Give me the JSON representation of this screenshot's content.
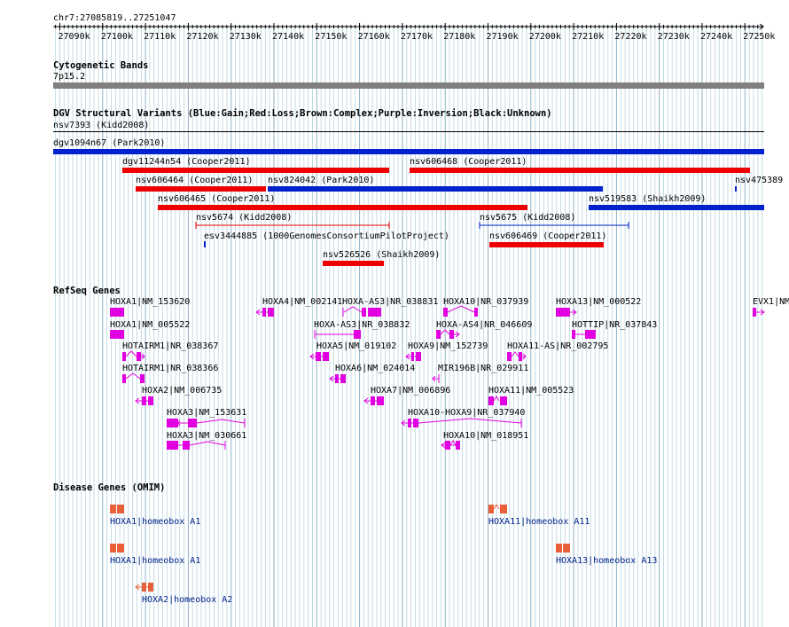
{
  "location": "chr7:27085819..27251047",
  "ruler_ticks": [
    "27090k",
    "27100k",
    "27110k",
    "27120k",
    "27130k",
    "27140k",
    "27150k",
    "27160k",
    "27170k",
    "27180k",
    "27190k",
    "27200k",
    "27210k",
    "27220k",
    "27230k",
    "27240k",
    "27250k"
  ],
  "cytoband": {
    "title": "Cytogenetic Bands",
    "band": "7p15.2"
  },
  "dgv": {
    "title": "DGV Structural Variants (Blue:Gain;Red:Loss;Brown:Complex;Purple:Inversion;Black:Unknown)",
    "colors": {
      "gain": "#0022cc",
      "loss": "#ee0000"
    },
    "variants": [
      {
        "label": "nsv7393 (Kidd2008)",
        "type": "line"
      },
      {
        "label": "dgv1094n67 (Park2010)",
        "type": "gain"
      },
      {
        "label": "dgv11244n54 (Cooper2011)",
        "type": "loss"
      },
      {
        "label": "nsv606468 (Cooper2011)",
        "type": "loss"
      },
      {
        "label": "nsv606464 (Cooper2011)",
        "type": "loss"
      },
      {
        "label": "nsv824042 (Park2010)",
        "type": "gain"
      },
      {
        "label": "nsv475389",
        "type": "gain"
      },
      {
        "label": "nsv606465 (Cooper2011)",
        "type": "loss"
      },
      {
        "label": "nsv519583 (Shaikh2009)",
        "type": "gain"
      },
      {
        "label": "nsv5674 (Kidd2008)",
        "type": "loss"
      },
      {
        "label": "nsv5675 (Kidd2008)",
        "type": "gain"
      },
      {
        "label": "esv3444885 (1000GenomesConsortiumPilotProject)",
        "type": "gain"
      },
      {
        "label": "nsv606469 (Cooper2011)",
        "type": "loss"
      },
      {
        "label": "nsv526526 (Shaikh2009)",
        "type": "loss"
      }
    ]
  },
  "refseq": {
    "title": "RefSeq Genes",
    "color": "#e000e0",
    "genes": [
      "HOXA1|NM_153620",
      "HOXA4|NM_002141",
      "HOXA-AS3|NR_038831",
      "HOXA10|NR_037939",
      "HOXA13|NM_000522",
      "EVX1|NM",
      "HOXA1|NM_005522",
      "HOXA-AS3|NR_038832",
      "HOXA-AS4|NR_046609",
      "HOTTIP|NR_037843",
      "HOTAIRM1|NR_038367",
      "HOXA5|NM_019102",
      "HOXA9|NM_152739",
      "HOXA11-AS|NR_002795",
      "HOTAIRM1|NR_038366",
      "HOXA6|NM_024014",
      "MIR196B|NR_029911",
      "HOXA2|NM_006735",
      "HOXA7|NM_006896",
      "HOXA11|NM_005523",
      "HOXA3|NM_153631",
      "HOXA10-HOXA9|NR_037940",
      "HOXA3|NM_030661",
      "HOXA10|NM_018951"
    ]
  },
  "disease": {
    "title": "Disease Genes (OMIM)",
    "color": "#e8603a",
    "genes": [
      "HOXA1|homeobox A1",
      "HOXA11|homeobox A11",
      "HOXA1|homeobox A1",
      "HOXA13|homeobox A13",
      "HOXA2|homeobox A2"
    ]
  }
}
